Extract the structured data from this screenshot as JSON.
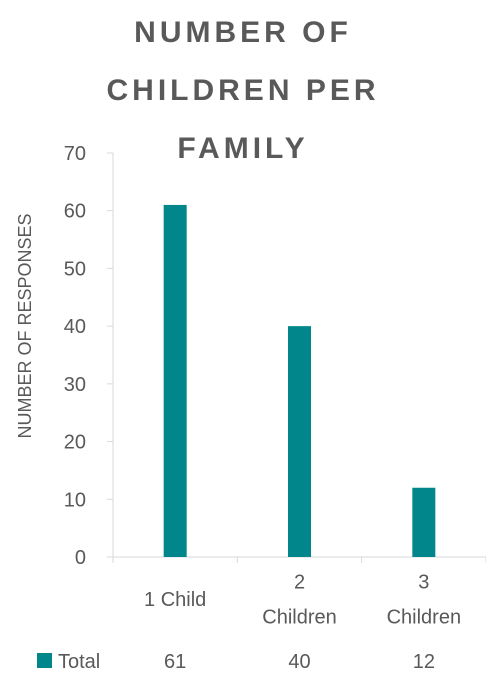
{
  "chart_data": {
    "type": "bar",
    "title_lines": [
      "NUMBER OF",
      "CHILDREN PER",
      "FAMILY"
    ],
    "title": "NUMBER OF CHILDREN PER FAMILY",
    "ylabel": "NUMBER OF RESPONSES",
    "xlabel": "",
    "categories": [
      {
        "lines": [
          "1 Child"
        ]
      },
      {
        "lines": [
          "2",
          "Children"
        ]
      },
      {
        "lines": [
          "3",
          "Children"
        ]
      }
    ],
    "category_labels": [
      "1 Child",
      "2 Children",
      "3 Children"
    ],
    "series": [
      {
        "name": "Total",
        "values": [
          61,
          40,
          12
        ],
        "color": "#00868B"
      }
    ],
    "ylim": [
      0,
      70
    ],
    "yticks": [
      "0",
      "10",
      "20",
      "30",
      "40",
      "50",
      "60",
      "70"
    ],
    "grid": false,
    "legend": "data-table-bottom",
    "table_values": [
      "61",
      "40",
      "12"
    ]
  },
  "colors": {
    "bar": "#00868B",
    "axis": "#d9d9d9",
    "text": "#595959"
  }
}
